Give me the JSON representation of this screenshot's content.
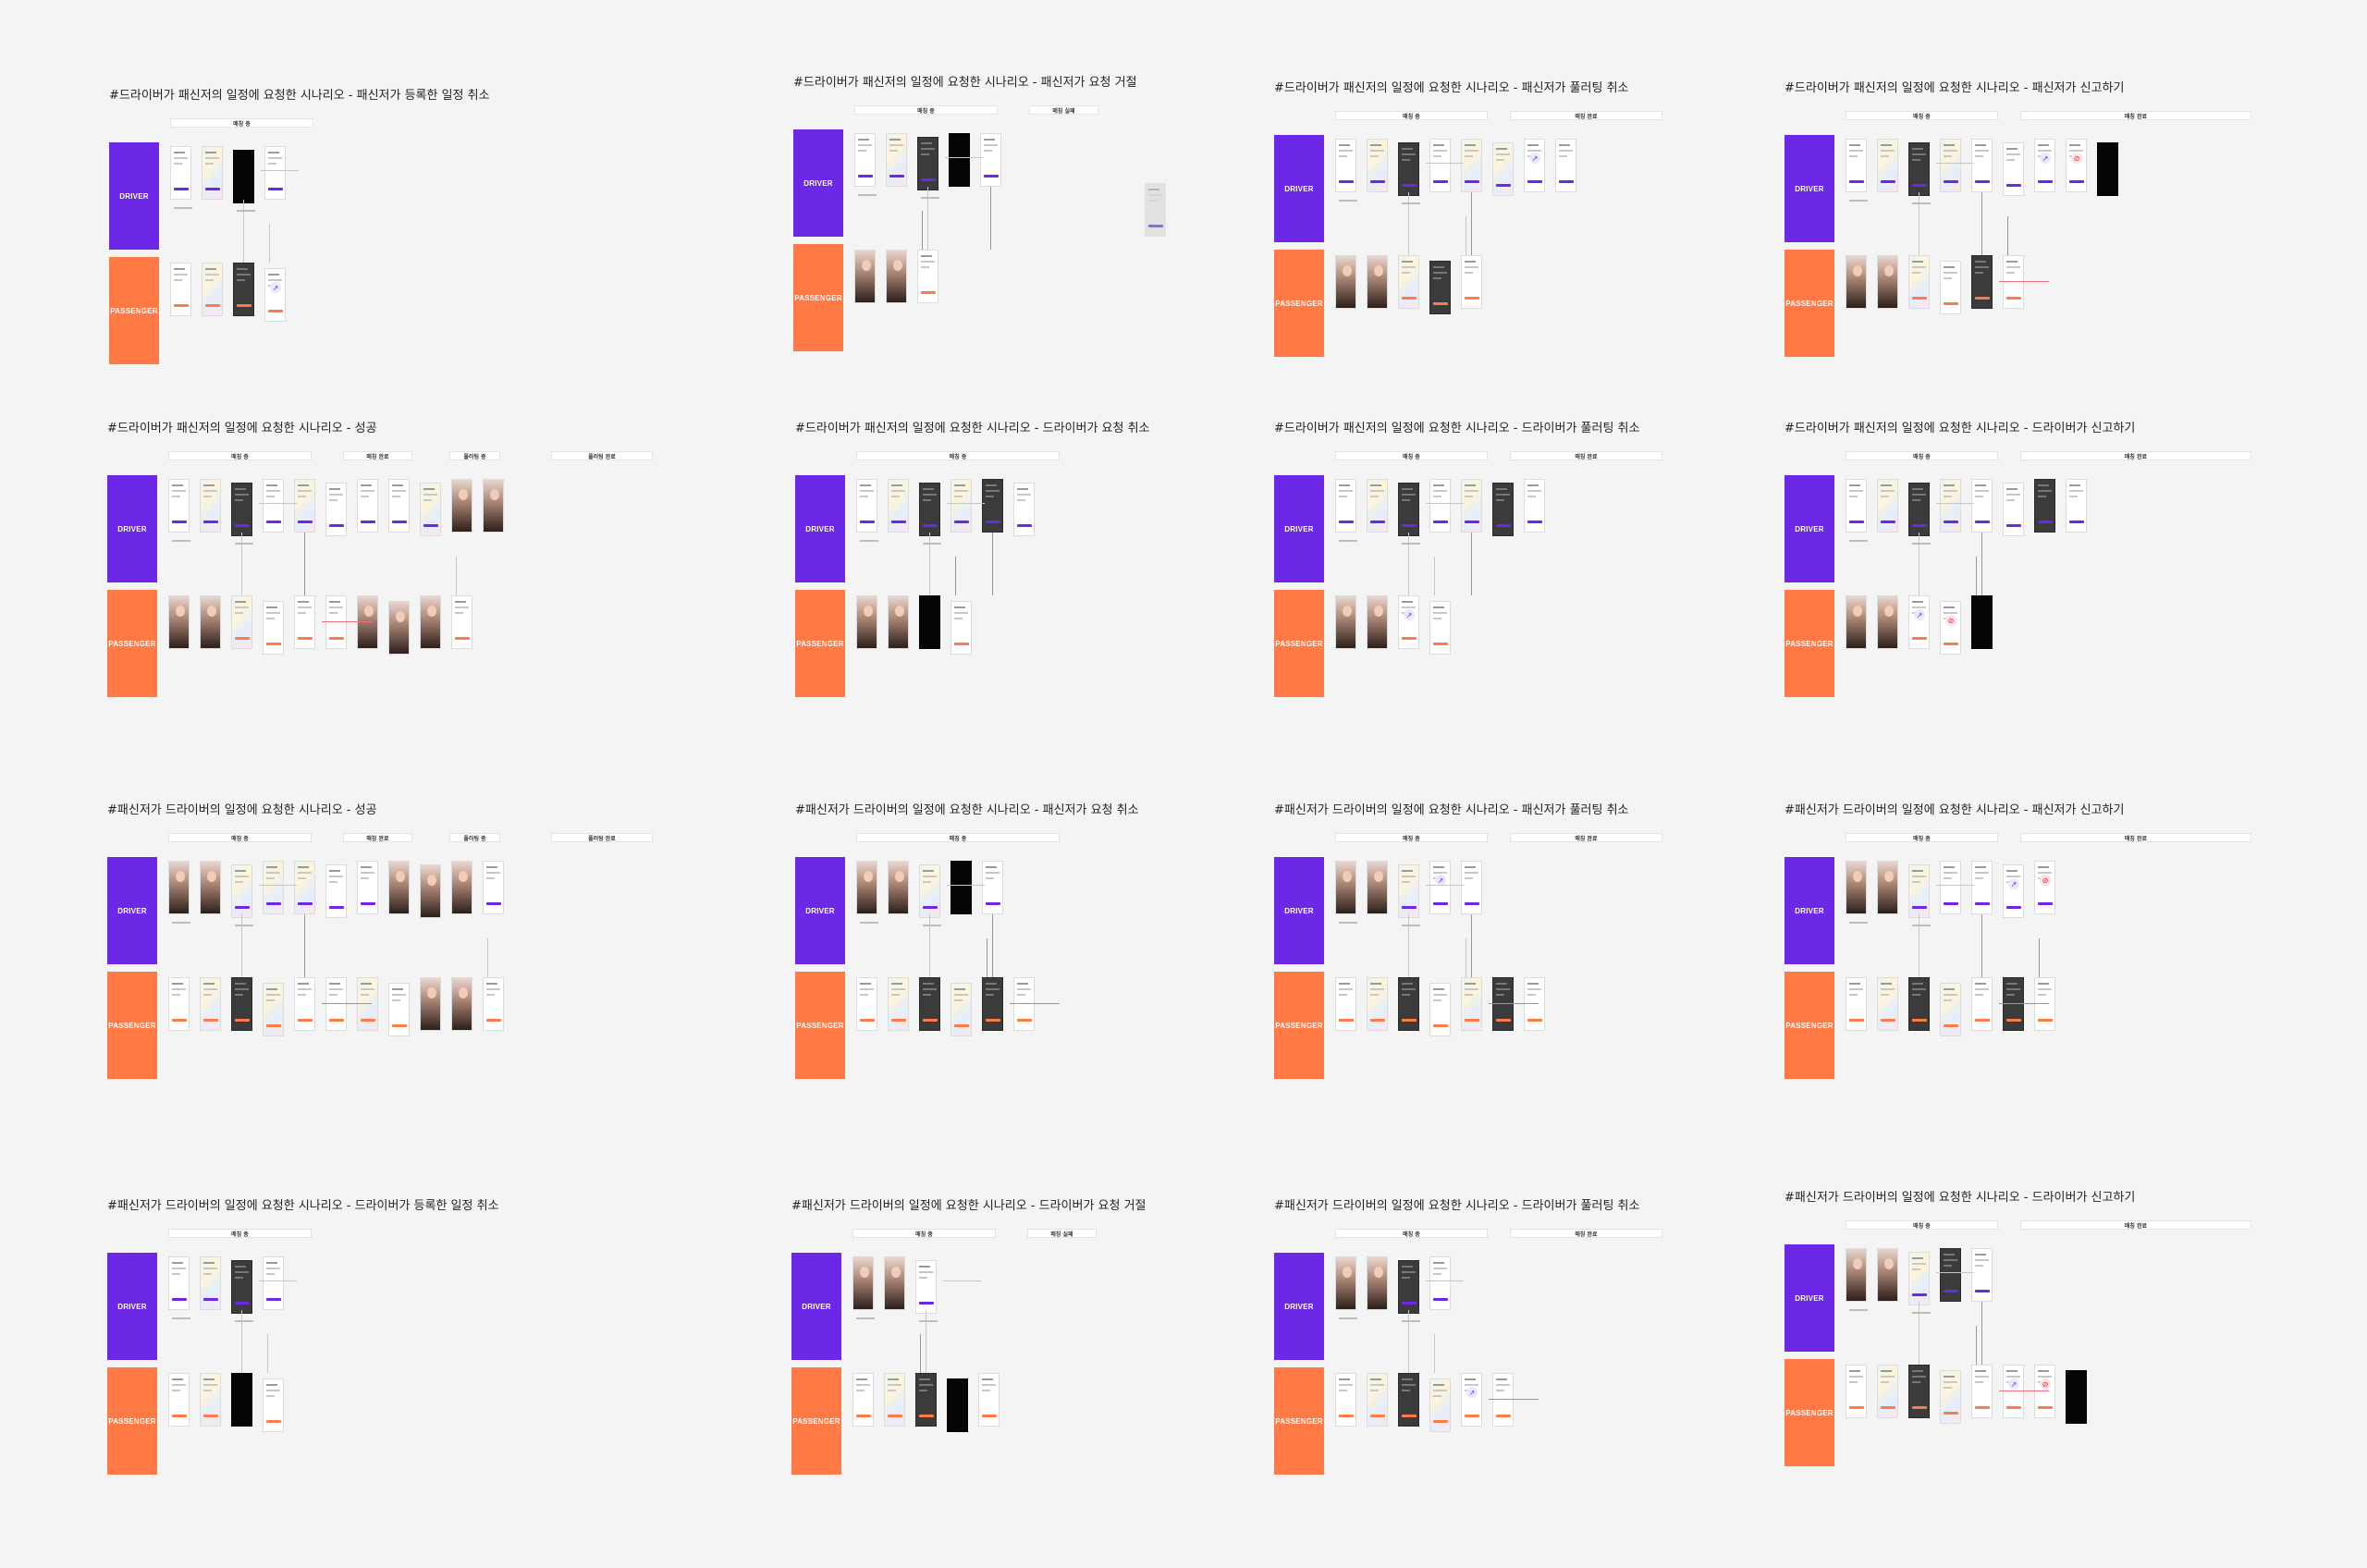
{
  "canvas": {
    "background": "#f4f4f4"
  },
  "colors": {
    "driver": "#6c28e6",
    "passenger": "#ff7a45",
    "connector": "#c6c6c6",
    "connector_alert": "#ef6f7a"
  },
  "lane_labels": {
    "driver": "DRIVER",
    "passenger": "PASSENGER"
  },
  "screen_kinds": [
    "list",
    "map",
    "dark-overlay",
    "black-modal",
    "profile-photo",
    "carpool-badge",
    "report-badge"
  ],
  "boards": [
    {
      "title": "#드라이버가 패신저의 일정에 요청한 시나리오 - 패신저가 등록한 일정 취소",
      "phases": [
        "매칭 중"
      ]
    },
    {
      "title": "#드라이버가 패신저의 일정에 요청한 시나리오 - 패신저가 요청 거절",
      "phases": [
        "매칭 중",
        "매칭 실패"
      ]
    },
    {
      "title": "#드라이버가 패신저의 일정에 요청한 시나리오  - 패신저가 풀러팅 취소",
      "phases": [
        "매칭 중",
        "매칭 완료"
      ]
    },
    {
      "title": "#드라이버가 패신저의 일정에 요청한 시나리오  - 패신저가 신고하기",
      "phases": [
        "매칭 중",
        "매칭 완료"
      ]
    },
    {
      "title": "#드라이버가 패신저의 일정에 요청한 시나리오 - 성공",
      "phases": [
        "매칭 중",
        "매칭 완료",
        "풀러팅 중",
        "풀러팅 완료"
      ]
    },
    {
      "title": "#드라이버가 패신저의 일정에 요청한 시나리오  - 드라이버가 요청 취소",
      "phases": [
        "매칭 중"
      ]
    },
    {
      "title": "#드라이버가 패신저의 일정에 요청한 시나리오  - 드라이버가 풀러팅 취소",
      "phases": [
        "매칭 중",
        "매칭 완료"
      ]
    },
    {
      "title": "#드라이버가 패신저의 일정에 요청한 시나리오  - 드라이버가 신고하기",
      "phases": [
        "매칭 중",
        "매칭 완료"
      ]
    },
    {
      "title": "#패신저가 드라이버의 일정에 요청한 시나리오 - 성공",
      "phases": [
        "매칭 중",
        "매칭 완료",
        "풀러팅 중",
        "풀러팅 완료"
      ]
    },
    {
      "title": "#패신저가 드라이버의 일정에 요청한 시나리오 - 패신저가 요청 취소",
      "phases": [
        "매칭 중"
      ]
    },
    {
      "title": "#패신저가 드라이버의 일정에 요청한 시나리오 - 패신저가 풀러팅 취소",
      "phases": [
        "매칭 중",
        "매칭 완료"
      ]
    },
    {
      "title": "#패신저가 드라이버의 일정에 요청한 시나리오 - 패신저가 신고하기",
      "phases": [
        "매칭 중",
        "매칭 완료"
      ]
    },
    {
      "title": "#패신저가 드라이버의 일정에 요청한 시나리오 - 드라이버가 등록한 일정 취소",
      "phases": [
        "매칭 중"
      ]
    },
    {
      "title": "#패신저가 드라이버의 일정에 요청한 시나리오 - 드라이버가 요청 거절",
      "phases": [
        "매칭 중",
        "매칭 실패"
      ]
    },
    {
      "title": "#패신저가 드라이버의 일정에 요청한 시나리오 - 드라이버가 풀러팅 취소",
      "phases": [
        "매칭 중",
        "매칭 완료"
      ]
    },
    {
      "title": "#패신저가 드라이버의 일정에 요청한 시나리오 - 드라이버가 신고하기",
      "phases": [
        "매칭 중",
        "매칭 완료"
      ]
    }
  ]
}
